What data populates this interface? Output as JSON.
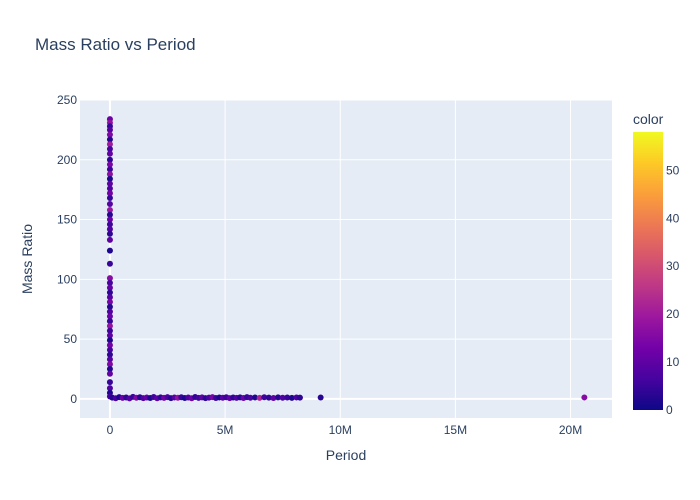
{
  "chart_data": {
    "type": "scatter",
    "title": "Mass Ratio vs Period",
    "xlabel": "Period",
    "ylabel": "Mass Ratio",
    "xlim": [
      -1300000,
      21800000
    ],
    "ylim": [
      -16,
      250
    ],
    "x_ticks": [
      {
        "value": 0,
        "label": "0"
      },
      {
        "value": 5000000,
        "label": "5M"
      },
      {
        "value": 10000000,
        "label": "10M"
      },
      {
        "value": 15000000,
        "label": "15M"
      },
      {
        "value": 20000000,
        "label": "20M"
      }
    ],
    "y_ticks": [
      {
        "value": 0,
        "label": "0"
      },
      {
        "value": 50,
        "label": "50"
      },
      {
        "value": 100,
        "label": "100"
      },
      {
        "value": 150,
        "label": "150"
      },
      {
        "value": 200,
        "label": "200"
      },
      {
        "value": 250,
        "label": "250"
      }
    ],
    "grid": true,
    "colorbar": {
      "title": "color",
      "range": [
        0,
        58
      ],
      "ticks": [
        {
          "value": 0,
          "label": "0"
        },
        {
          "value": 10,
          "label": "10"
        },
        {
          "value": 20,
          "label": "20"
        },
        {
          "value": 30,
          "label": "30"
        },
        {
          "value": 40,
          "label": "40"
        },
        {
          "value": 50,
          "label": "50"
        }
      ],
      "colorscale": [
        "#0d0887",
        "#46039f",
        "#7201a8",
        "#9c179e",
        "#bd3786",
        "#d8576b",
        "#ed7953",
        "#fb9f3a",
        "#fdca26",
        "#f0f921"
      ]
    },
    "points": [
      {
        "x": 0,
        "y": 234,
        "c": 12
      },
      {
        "x": 0,
        "y": 231,
        "c": 18
      },
      {
        "x": 0,
        "y": 228,
        "c": 5
      },
      {
        "x": 0,
        "y": 225,
        "c": 9
      },
      {
        "x": 0,
        "y": 221,
        "c": 15
      },
      {
        "x": 0,
        "y": 217,
        "c": 3
      },
      {
        "x": 0,
        "y": 213,
        "c": 20
      },
      {
        "x": 0,
        "y": 209,
        "c": 7
      },
      {
        "x": 0,
        "y": 205,
        "c": 11
      },
      {
        "x": 0,
        "y": 200,
        "c": 4
      },
      {
        "x": 0,
        "y": 196,
        "c": 14
      },
      {
        "x": 0,
        "y": 192,
        "c": 6
      },
      {
        "x": 0,
        "y": 188,
        "c": 17
      },
      {
        "x": 0,
        "y": 184,
        "c": 2
      },
      {
        "x": 0,
        "y": 180,
        "c": 10
      },
      {
        "x": 0,
        "y": 176,
        "c": 8
      },
      {
        "x": 0,
        "y": 172,
        "c": 13
      },
      {
        "x": 0,
        "y": 168,
        "c": 5
      },
      {
        "x": 0,
        "y": 163,
        "c": 9
      },
      {
        "x": 0,
        "y": 158,
        "c": 19
      },
      {
        "x": 0,
        "y": 154,
        "c": 3
      },
      {
        "x": 0,
        "y": 150,
        "c": 12
      },
      {
        "x": 0,
        "y": 146,
        "c": 6
      },
      {
        "x": 0,
        "y": 142,
        "c": 8
      },
      {
        "x": 0,
        "y": 138,
        "c": 4
      },
      {
        "x": 0,
        "y": 133,
        "c": 10
      },
      {
        "x": 0,
        "y": 124,
        "c": 2
      },
      {
        "x": 0,
        "y": 113,
        "c": 5
      },
      {
        "x": 0,
        "y": 101,
        "c": 16
      },
      {
        "x": 0,
        "y": 97,
        "c": 7
      },
      {
        "x": 0,
        "y": 93,
        "c": 11
      },
      {
        "x": 0,
        "y": 89,
        "c": 4
      },
      {
        "x": 0,
        "y": 85,
        "c": 9
      },
      {
        "x": 0,
        "y": 81,
        "c": 14
      },
      {
        "x": 0,
        "y": 77,
        "c": 3
      },
      {
        "x": 0,
        "y": 73,
        "c": 8
      },
      {
        "x": 0,
        "y": 69,
        "c": 12
      },
      {
        "x": 0,
        "y": 65,
        "c": 5
      },
      {
        "x": 0,
        "y": 61,
        "c": 18
      },
      {
        "x": 0,
        "y": 57,
        "c": 6
      },
      {
        "x": 0,
        "y": 53,
        "c": 10
      },
      {
        "x": 0,
        "y": 49,
        "c": 2
      },
      {
        "x": 0,
        "y": 45,
        "c": 13
      },
      {
        "x": 0,
        "y": 41,
        "c": 7
      },
      {
        "x": 0,
        "y": 37,
        "c": 4
      },
      {
        "x": 0,
        "y": 33,
        "c": 9
      },
      {
        "x": 0,
        "y": 29,
        "c": 15
      },
      {
        "x": 0,
        "y": 25,
        "c": 3
      },
      {
        "x": 0,
        "y": 21,
        "c": 11
      },
      {
        "x": 0,
        "y": 14,
        "c": 5
      },
      {
        "x": 0,
        "y": 9,
        "c": 8
      },
      {
        "x": 0,
        "y": 5,
        "c": 2
      },
      {
        "x": 0,
        "y": 2,
        "c": 6
      },
      {
        "x": 100000,
        "y": 1,
        "c": 3
      },
      {
        "x": 250000,
        "y": 0.5,
        "c": 7
      },
      {
        "x": 400000,
        "y": 1.5,
        "c": 2
      },
      {
        "x": 550000,
        "y": 0.8,
        "c": 12
      },
      {
        "x": 700000,
        "y": 1.2,
        "c": 4
      },
      {
        "x": 850000,
        "y": 0.4,
        "c": 9
      },
      {
        "x": 1000000,
        "y": 1.7,
        "c": 5
      },
      {
        "x": 1150000,
        "y": 0.9,
        "c": 15
      },
      {
        "x": 1300000,
        "y": 1.4,
        "c": 3
      },
      {
        "x": 1450000,
        "y": 0.6,
        "c": 8
      },
      {
        "x": 1600000,
        "y": 1.1,
        "c": 11
      },
      {
        "x": 1750000,
        "y": 0.7,
        "c": 2
      },
      {
        "x": 1900000,
        "y": 1.6,
        "c": 6
      },
      {
        "x": 2050000,
        "y": 0.5,
        "c": 10
      },
      {
        "x": 2200000,
        "y": 1.3,
        "c": 4
      },
      {
        "x": 2350000,
        "y": 0.8,
        "c": 13
      },
      {
        "x": 2500000,
        "y": 1.5,
        "c": 7
      },
      {
        "x": 2650000,
        "y": 0.6,
        "c": 3
      },
      {
        "x": 2800000,
        "y": 1.2,
        "c": 9
      },
      {
        "x": 2950000,
        "y": 0.9,
        "c": 18
      },
      {
        "x": 3100000,
        "y": 1.4,
        "c": 5
      },
      {
        "x": 3250000,
        "y": 0.7,
        "c": 2
      },
      {
        "x": 3400000,
        "y": 1.1,
        "c": 8
      },
      {
        "x": 3550000,
        "y": 0.5,
        "c": 12
      },
      {
        "x": 3700000,
        "y": 1.6,
        "c": 4
      },
      {
        "x": 3850000,
        "y": 0.8,
        "c": 6
      },
      {
        "x": 4000000,
        "y": 1.3,
        "c": 10
      },
      {
        "x": 4150000,
        "y": 0.6,
        "c": 3
      },
      {
        "x": 4300000,
        "y": 1.0,
        "c": 7
      },
      {
        "x": 4450000,
        "y": 1.5,
        "c": 14
      },
      {
        "x": 4600000,
        "y": 0.7,
        "c": 5
      },
      {
        "x": 4750000,
        "y": 1.2,
        "c": 2
      },
      {
        "x": 4900000,
        "y": 0.9,
        "c": 9
      },
      {
        "x": 5050000,
        "y": 1.4,
        "c": 6
      },
      {
        "x": 5200000,
        "y": 0.6,
        "c": 11
      },
      {
        "x": 5350000,
        "y": 1.1,
        "c": 4
      },
      {
        "x": 5500000,
        "y": 0.8,
        "c": 8
      },
      {
        "x": 5650000,
        "y": 1.3,
        "c": 3
      },
      {
        "x": 5800000,
        "y": 0.7,
        "c": 12
      },
      {
        "x": 5950000,
        "y": 1.5,
        "c": 5
      },
      {
        "x": 6100000,
        "y": 0.9,
        "c": 7
      },
      {
        "x": 6300000,
        "y": 1.2,
        "c": 2
      },
      {
        "x": 6500000,
        "y": 0.8,
        "c": 22
      },
      {
        "x": 6700000,
        "y": 1.4,
        "c": 6
      },
      {
        "x": 6900000,
        "y": 1.0,
        "c": 4
      },
      {
        "x": 7100000,
        "y": 0.7,
        "c": 10
      },
      {
        "x": 7300000,
        "y": 1.3,
        "c": 3
      },
      {
        "x": 7500000,
        "y": 0.9,
        "c": 8
      },
      {
        "x": 7700000,
        "y": 1.1,
        "c": 5
      },
      {
        "x": 7900000,
        "y": 0.8,
        "c": 2
      },
      {
        "x": 8100000,
        "y": 1.2,
        "c": 7
      },
      {
        "x": 8250000,
        "y": 1.0,
        "c": 4
      },
      {
        "x": 9150000,
        "y": 1.1,
        "c": 3
      },
      {
        "x": 20600000,
        "y": 1.2,
        "c": 16
      }
    ]
  }
}
